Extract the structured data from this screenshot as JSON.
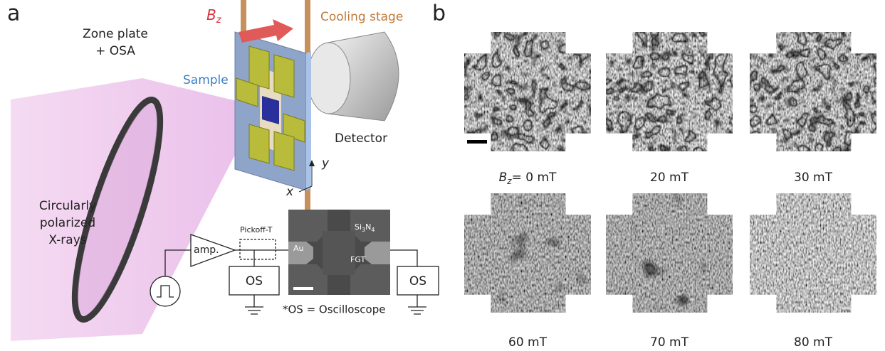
{
  "panel_a": {
    "label": "a",
    "zone_plate": [
      "Zone plate",
      "+ OSA"
    ],
    "field": {
      "symbol": "B",
      "subscript": "z"
    },
    "cooling_stage": "Cooling stage",
    "sample": "Sample",
    "detector": "Detector",
    "axis_y": "y",
    "axis_x": "x",
    "xrays": [
      "Circularly",
      "polarized",
      "X-rays"
    ],
    "circuit": {
      "pickoff": "Pickoff-T",
      "amp": "amp.",
      "os_left": "OS",
      "os_right": "OS",
      "footnote": "*OS = Oscilloscope",
      "sem": {
        "substrate": [
          "Si",
          "3",
          "N",
          "4"
        ],
        "electrode": "Au",
        "flake": "FGT"
      }
    }
  },
  "panel_b": {
    "label": "b",
    "images": [
      {
        "symbol": "B",
        "subscript": "z",
        "text": "= 0 mT"
      },
      {
        "text": "20 mT"
      },
      {
        "text": "30 mT"
      },
      {
        "text": "60 mT"
      },
      {
        "text": "70 mT"
      },
      {
        "text": "80 mT"
      }
    ]
  }
}
